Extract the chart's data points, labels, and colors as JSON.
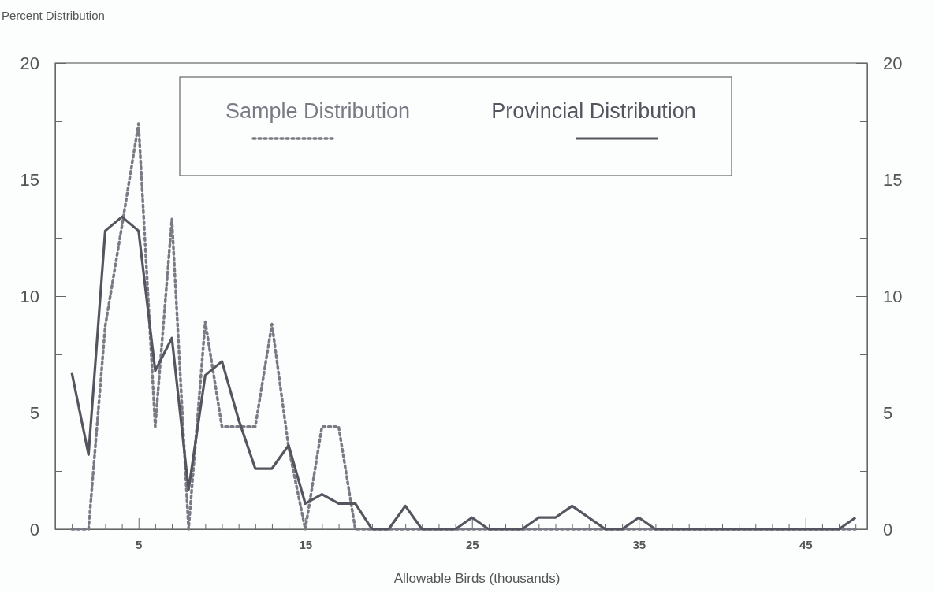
{
  "chart_data": {
    "type": "line",
    "ylabel": "Percent Distribution",
    "xlabel": "Allowable Birds (thousands)",
    "x": [
      1,
      2,
      3,
      4,
      5,
      6,
      7,
      8,
      9,
      10,
      11,
      12,
      13,
      14,
      15,
      16,
      17,
      18,
      19,
      20,
      21,
      22,
      23,
      24,
      25,
      26,
      27,
      28,
      29,
      30,
      31,
      32,
      33,
      34,
      35,
      36,
      37,
      38,
      39,
      40,
      41,
      42,
      43,
      44,
      45,
      46,
      47,
      48
    ],
    "series": [
      {
        "name": "Sample Distribution",
        "color": "#7a7a85",
        "line_style": "dotted",
        "values": [
          0,
          0,
          8.7,
          13.0,
          17.4,
          4.4,
          13.3,
          0,
          8.9,
          4.4,
          4.4,
          4.4,
          8.8,
          3.5,
          0,
          4.4,
          4.4,
          0,
          0,
          0,
          0,
          0,
          0,
          0,
          0,
          0,
          0,
          0,
          0,
          0,
          0,
          0,
          0,
          0,
          0,
          0,
          0,
          0,
          0,
          0,
          0,
          0,
          0,
          0,
          0,
          0,
          0,
          0
        ]
      },
      {
        "name": "Provincial Distribution",
        "color": "#55555f",
        "line_style": "solid",
        "values": [
          6.7,
          3.2,
          12.8,
          13.4,
          12.8,
          6.8,
          8.2,
          1.7,
          6.6,
          7.2,
          4.7,
          2.6,
          2.6,
          3.6,
          1.1,
          1.5,
          1.1,
          1.1,
          0,
          0,
          1.0,
          0,
          0,
          0,
          0.5,
          0,
          0,
          0,
          0.5,
          0.5,
          1.0,
          0.5,
          0,
          0,
          0.5,
          0,
          0,
          0,
          0,
          0,
          0,
          0,
          0,
          0,
          0,
          0,
          0,
          0.5
        ]
      }
    ],
    "xlim": [
      0,
      48.7
    ],
    "xticks": [
      {
        "value": 1,
        "label": null
      },
      {
        "value": 2,
        "label": null
      },
      {
        "value": 3,
        "label": null
      },
      {
        "value": 4,
        "label": null
      },
      5,
      {
        "value": 6,
        "label": null
      },
      {
        "value": 7,
        "label": null
      },
      {
        "value": 8,
        "label": null
      },
      {
        "value": 9,
        "label": null
      },
      {
        "value": 10,
        "label": null
      },
      {
        "value": 11,
        "label": null
      },
      {
        "value": 12,
        "label": null
      },
      {
        "value": 13,
        "label": null
      },
      {
        "value": 14,
        "label": null
      },
      15,
      {
        "value": 16,
        "label": null
      },
      {
        "value": 17,
        "label": null
      },
      {
        "value": 18,
        "label": null
      },
      {
        "value": 19,
        "label": null
      },
      {
        "value": 20,
        "label": null
      },
      {
        "value": 21,
        "label": null
      },
      {
        "value": 22,
        "label": null
      },
      {
        "value": 23,
        "label": null
      },
      {
        "value": 24,
        "label": null
      },
      25,
      {
        "value": 26,
        "label": null
      },
      {
        "value": 27,
        "label": null
      },
      {
        "value": 28,
        "label": null
      },
      {
        "value": 29,
        "label": null
      },
      {
        "value": 30,
        "label": null
      },
      {
        "value": 31,
        "label": null
      },
      {
        "value": 32,
        "label": null
      },
      {
        "value": 33,
        "label": null
      },
      {
        "value": 34,
        "label": null
      },
      35,
      {
        "value": 36,
        "label": null
      },
      {
        "value": 37,
        "label": null
      },
      {
        "value": 38,
        "label": null
      },
      {
        "value": 39,
        "label": null
      },
      {
        "value": 40,
        "label": null
      },
      {
        "value": 41,
        "label": null
      },
      {
        "value": 42,
        "label": null
      },
      {
        "value": 43,
        "label": null
      },
      {
        "value": 44,
        "label": null
      },
      45,
      {
        "value": 46,
        "label": null
      },
      {
        "value": 47,
        "label": null
      },
      {
        "value": 48,
        "label": null
      }
    ],
    "ylim": [
      0,
      20
    ],
    "yticks": [
      0,
      {
        "value": 2.5,
        "label": null
      },
      5,
      {
        "value": 7.5,
        "label": null
      },
      10,
      {
        "value": 12.5,
        "label": null
      },
      15,
      {
        "value": 17.5,
        "label": null
      },
      20
    ],
    "y2lim": [
      0,
      20
    ],
    "y2ticks": [
      0,
      {
        "value": 2.5,
        "label": null
      },
      5,
      {
        "value": 7.5,
        "label": null
      },
      10,
      {
        "value": 12.5,
        "label": null
      },
      15,
      {
        "value": 17.5,
        "label": null
      },
      20
    ],
    "legend": "top",
    "grid": false,
    "marker": "none"
  }
}
